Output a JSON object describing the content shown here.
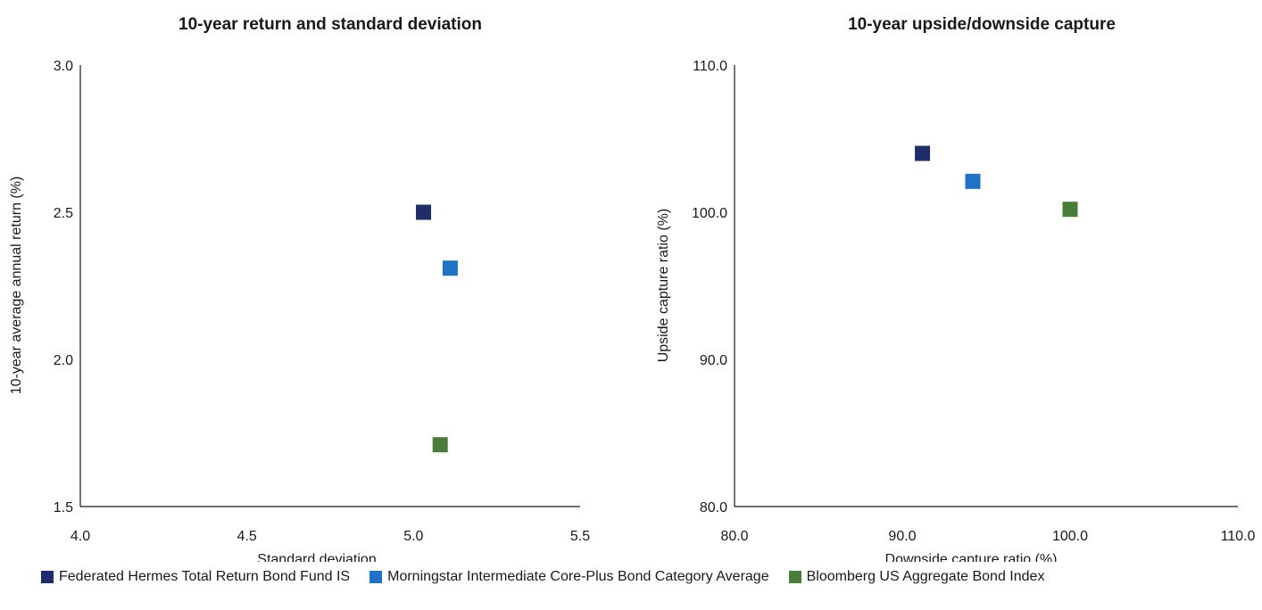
{
  "chart_data": [
    {
      "type": "scatter",
      "title": "10-year return and standard deviation",
      "xlabel": "Standard deviation",
      "ylabel": "10-year average annual return (%)",
      "xlim": [
        4.0,
        5.5
      ],
      "ylim": [
        1.5,
        3.0
      ],
      "xticks": [
        "4.0",
        "4.5",
        "5.0",
        "5.5"
      ],
      "yticks": [
        "1.5",
        "2.0",
        "2.5",
        "3.0"
      ],
      "grid": false,
      "series": [
        {
          "name": "Federated Hermes Total Return Bond Fund IS",
          "color": "#1f2d6b",
          "points": [
            {
              "x": 5.03,
              "y": 2.5
            }
          ]
        },
        {
          "name": "Morningstar Intermediate Core-Plus Bond Category Average",
          "color": "#1f72c4",
          "points": [
            {
              "x": 5.11,
              "y": 2.31
            }
          ]
        },
        {
          "name": "Bloomberg US Aggregate Bond Index",
          "color": "#4a7c3a",
          "points": [
            {
              "x": 5.08,
              "y": 1.71
            }
          ]
        }
      ]
    },
    {
      "type": "scatter",
      "title": "10-year upside/downside capture",
      "xlabel": "Downside capture ratio (%)",
      "ylabel": "Upside capture ratio (%)",
      "xlim": [
        80.0,
        110.0
      ],
      "ylim": [
        80.0,
        110.0
      ],
      "xticks": [
        "80.0",
        "90.0",
        "100.0",
        "110.0"
      ],
      "yticks": [
        "80.0",
        "90.0",
        "100.0",
        "110.0"
      ],
      "grid": false,
      "series": [
        {
          "name": "Federated Hermes Total Return Bond Fund IS",
          "color": "#1f2d6b",
          "points": [
            {
              "x": 91.2,
              "y": 104.0
            }
          ]
        },
        {
          "name": "Morningstar Intermediate Core-Plus Bond Category Average",
          "color": "#1f72c4",
          "points": [
            {
              "x": 94.2,
              "y": 102.1
            }
          ]
        },
        {
          "name": "Bloomberg US Aggregate Bond Index",
          "color": "#4a7c3a",
          "points": [
            {
              "x": 100.0,
              "y": 100.2
            }
          ]
        }
      ]
    }
  ],
  "legend": {
    "placement": "bottom",
    "items": [
      {
        "label": "Federated Hermes Total Return Bond Fund IS",
        "color": "#1f2d6b"
      },
      {
        "label": "Morningstar Intermediate Core-Plus Bond Category Average",
        "color": "#1f72c4"
      },
      {
        "label": "Bloomberg US Aggregate Bond Index",
        "color": "#4a7c3a"
      }
    ]
  }
}
